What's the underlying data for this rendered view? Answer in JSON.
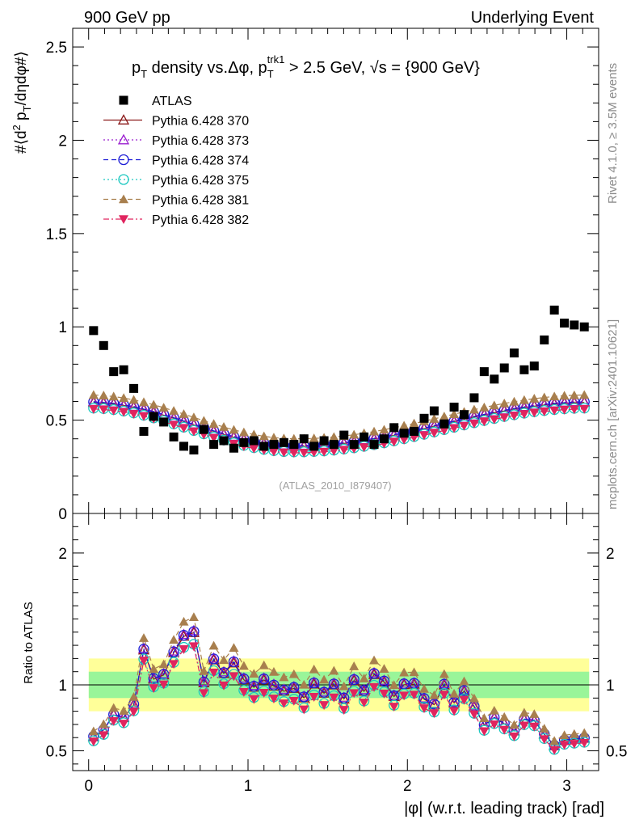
{
  "header": {
    "left": "900 GeV pp",
    "right": "Underlying Event"
  },
  "side_text": {
    "rivet": "Rivet 4.1.0, ≥ 3.5M events",
    "mcplots": "mcplots.cern.ch [arXiv:2401.10621]"
  },
  "watermark": "(ATLAS_2010_I879407)",
  "chart_data": {
    "type": "scatter",
    "title": "p_T density vs. Δφ, p_T^trk1 > 2.5 GeV, √s = {900 GeV}",
    "title_parts": {
      "a": "p",
      "a_sub": "T",
      "b": " density vs.Δφ, p",
      "b_sub": "T",
      "b_sup": "trk1",
      "c": " > 2.5 GeV, √s = {900 GeV}"
    },
    "ylabel_top": "#⟨d² p_T/dηdφ#⟩",
    "ylabel_parts": {
      "a": "#⟨d",
      "sup": "2",
      "b": " p",
      "sub": "T",
      "c": "/dηdφ#⟩"
    },
    "ylabel_ratio": "Ratio to ATLAS",
    "xlabel": "|φ| (w.r.t. leading track) [rad]",
    "xlim": [
      -0.1,
      3.2
    ],
    "ylim_top": [
      0,
      2.6
    ],
    "ylim_ratio": [
      0.35,
      2.3
    ],
    "x_ticks": [
      "0",
      "1",
      "2",
      "3"
    ],
    "y_ticks_top": [
      "0",
      "0.5",
      "1",
      "1.5",
      "2",
      "2.5"
    ],
    "y_ticks_ratio": [
      "0.5",
      "1",
      "2"
    ],
    "x": [
      0.031,
      0.094,
      0.157,
      0.22,
      0.283,
      0.346,
      0.408,
      0.471,
      0.534,
      0.597,
      0.66,
      0.723,
      0.785,
      0.848,
      0.911,
      0.974,
      1.037,
      1.1,
      1.162,
      1.225,
      1.288,
      1.351,
      1.414,
      1.477,
      1.539,
      1.602,
      1.665,
      1.728,
      1.791,
      1.854,
      1.916,
      1.979,
      2.042,
      2.105,
      2.168,
      2.231,
      2.293,
      2.356,
      2.419,
      2.482,
      2.545,
      2.608,
      2.67,
      2.733,
      2.796,
      2.859,
      2.922,
      2.985,
      3.047,
      3.11
    ],
    "atlas": [
      0.98,
      0.9,
      0.76,
      0.77,
      0.67,
      0.44,
      0.52,
      0.49,
      0.41,
      0.36,
      0.34,
      0.45,
      0.37,
      0.39,
      0.35,
      0.38,
      0.39,
      0.36,
      0.37,
      0.38,
      0.37,
      0.4,
      0.36,
      0.39,
      0.37,
      0.42,
      0.37,
      0.41,
      0.37,
      0.4,
      0.46,
      0.43,
      0.44,
      0.51,
      0.55,
      0.48,
      0.57,
      0.53,
      0.62,
      0.76,
      0.72,
      0.78,
      0.86,
      0.77,
      0.79,
      0.93,
      1.09,
      1.02,
      1.01,
      1.0
    ],
    "series": [
      {
        "name": "ATLAS",
        "color": "#000000",
        "marker": "square-filled",
        "line": "none"
      },
      {
        "name": "Pythia 6.428 370",
        "color": "#8b1a1a",
        "marker": "triangle-open",
        "line": "solid"
      },
      {
        "name": "Pythia 6.428 373",
        "color": "#9a1ecf",
        "marker": "triangle-open",
        "line": "dotted"
      },
      {
        "name": "Pythia 6.428 374",
        "color": "#1c1cd6",
        "marker": "circle-open",
        "line": "dashed"
      },
      {
        "name": "Pythia 6.428 375",
        "color": "#1cc8c0",
        "marker": "circle-open",
        "line": "dotted"
      },
      {
        "name": "Pythia 6.428 381",
        "color": "#a87f4e",
        "marker": "triangle-filled",
        "line": "dashed"
      },
      {
        "name": "Pythia 6.428 382",
        "color": "#e0245e",
        "marker": "triangle-down-filled",
        "line": "dashdot"
      }
    ],
    "mc_model": {
      "shape_min": 0.36,
      "shape_amp": 0.235,
      "min_at": 1.3,
      "offsets": {
        "Pythia 6.428 370": 0.0,
        "Pythia 6.428 373": 0.005,
        "Pythia 6.428 374": 0.003,
        "Pythia 6.428 375": -0.03,
        "Pythia 6.428 381": 0.04,
        "Pythia 6.428 382": -0.035
      }
    },
    "bands": {
      "yellow_half": 0.2,
      "green_half": 0.1,
      "yellow_color": "#ffff99",
      "green_color": "#99f599"
    }
  }
}
